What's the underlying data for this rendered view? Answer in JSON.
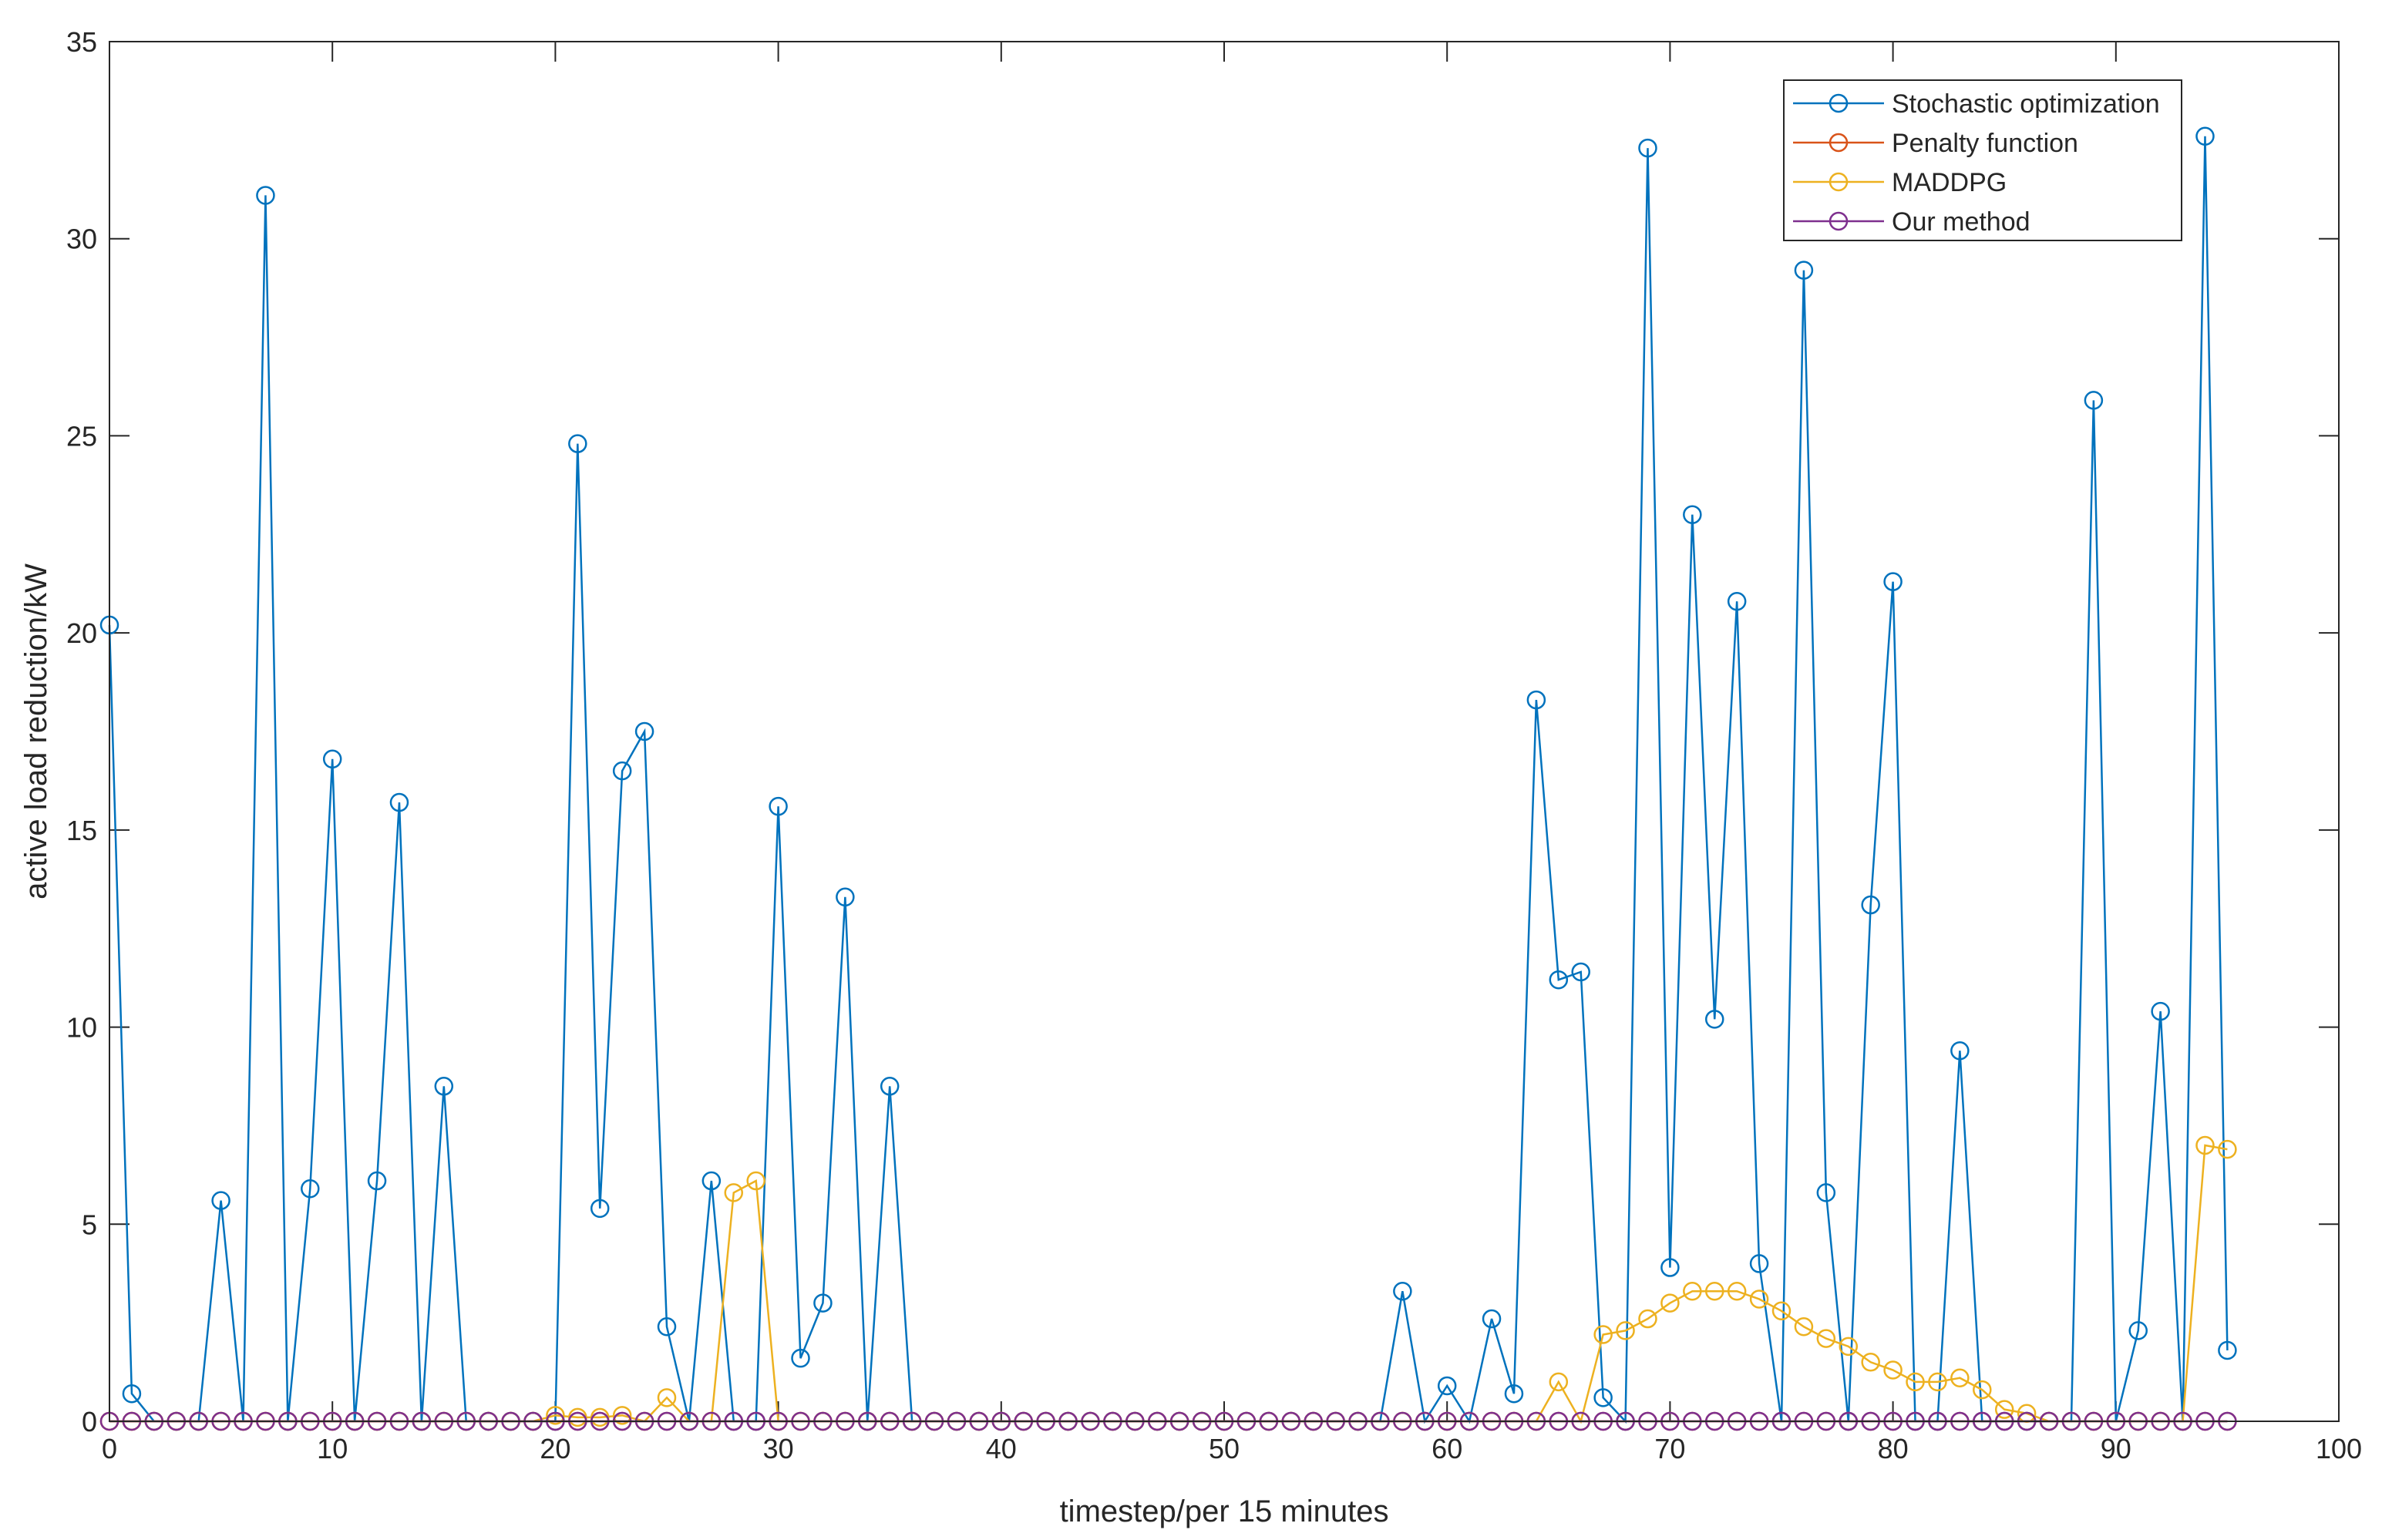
{
  "chart_data": {
    "type": "line",
    "title": "",
    "xlabel": "timestep/per 15 minutes",
    "ylabel": "active load reduction/kW",
    "xlim": [
      0,
      100
    ],
    "ylim": [
      0,
      35
    ],
    "xticks": [
      0,
      10,
      20,
      30,
      40,
      50,
      60,
      70,
      80,
      90,
      100
    ],
    "yticks": [
      0,
      5,
      10,
      15,
      20,
      25,
      30,
      35
    ],
    "legend_position": "top-right",
    "grid": false,
    "series": [
      {
        "name": "Stochastic optimization",
        "color": "#0072BD",
        "values": [
          20.2,
          0.7,
          0,
          0,
          0,
          5.6,
          0,
          31.1,
          0,
          5.9,
          16.8,
          0,
          6.1,
          15.7,
          0,
          8.5,
          0,
          0,
          0,
          0,
          0,
          24.8,
          5.4,
          16.5,
          17.5,
          2.4,
          0,
          6.1,
          0,
          0,
          15.6,
          1.6,
          3.0,
          13.3,
          0,
          8.5,
          0,
          0,
          0,
          0,
          0,
          0,
          0,
          0,
          0,
          0,
          0,
          0,
          0,
          0,
          0,
          0,
          0,
          0,
          0,
          0,
          0,
          0,
          3.3,
          0,
          0.9,
          0,
          2.6,
          0.7,
          18.3,
          11.2,
          11.4,
          0.6,
          0,
          32.3,
          3.9,
          23.0,
          10.2,
          20.8,
          4.0,
          0,
          29.2,
          5.8,
          0,
          13.1,
          21.3,
          0,
          0,
          9.4,
          0,
          0,
          0,
          0,
          0,
          25.9,
          0,
          2.3,
          10.4,
          0,
          32.6,
          1.8
        ]
      },
      {
        "name": "Penalty function",
        "color": "#D95319",
        "values": [
          0,
          0,
          0,
          0,
          0,
          0,
          0,
          0,
          0,
          0,
          0,
          0,
          0,
          0,
          0,
          0,
          0,
          0,
          0,
          0,
          0,
          0,
          0,
          0,
          0,
          0,
          0,
          0,
          0,
          0,
          0,
          0,
          0,
          0,
          0,
          0,
          0,
          0,
          0,
          0,
          0,
          0,
          0,
          0,
          0,
          0,
          0,
          0,
          0,
          0,
          0,
          0,
          0,
          0,
          0,
          0,
          0,
          0,
          0,
          0,
          0,
          0,
          0,
          0,
          0,
          0,
          0,
          0,
          0,
          0,
          0,
          0,
          0,
          0,
          0,
          0,
          0,
          0,
          0,
          0,
          0,
          0,
          0,
          0,
          0,
          0,
          0,
          0,
          0,
          0,
          0,
          0,
          0,
          0,
          0,
          0
        ]
      },
      {
        "name": "MADDPG",
        "color": "#EDB120",
        "values": [
          0,
          0,
          0,
          0,
          0,
          0,
          0,
          0,
          0,
          0,
          0,
          0,
          0,
          0,
          0,
          0,
          0,
          0,
          0,
          0,
          0.15,
          0.1,
          0.1,
          0.15,
          0,
          0.6,
          0,
          0,
          5.8,
          6.1,
          0,
          0,
          0,
          0,
          0,
          0,
          0,
          0,
          0,
          0,
          0,
          0,
          0,
          0,
          0,
          0,
          0,
          0,
          0,
          0,
          0,
          0,
          0,
          0,
          0,
          0,
          0,
          0,
          0,
          0,
          0,
          0,
          0,
          0,
          0,
          1.0,
          0,
          2.2,
          2.3,
          2.6,
          3.0,
          3.3,
          3.3,
          3.3,
          3.1,
          2.8,
          2.4,
          2.1,
          1.9,
          1.5,
          1.3,
          1.0,
          1.0,
          1.1,
          0.8,
          0.3,
          0.2,
          0,
          0,
          0,
          0,
          0,
          0,
          0,
          7.0,
          6.9
        ]
      },
      {
        "name": "Our method",
        "color": "#7E2F8E",
        "values": [
          0,
          0,
          0,
          0,
          0,
          0,
          0,
          0,
          0,
          0,
          0,
          0,
          0,
          0,
          0,
          0,
          0,
          0,
          0,
          0,
          0,
          0,
          0,
          0,
          0,
          0,
          0,
          0,
          0,
          0,
          0,
          0,
          0,
          0,
          0,
          0,
          0,
          0,
          0,
          0,
          0,
          0,
          0,
          0,
          0,
          0,
          0,
          0,
          0,
          0,
          0,
          0,
          0,
          0,
          0,
          0,
          0,
          0,
          0,
          0,
          0,
          0,
          0,
          0,
          0,
          0,
          0,
          0,
          0,
          0,
          0,
          0,
          0,
          0,
          0,
          0,
          0,
          0,
          0,
          0,
          0,
          0,
          0,
          0,
          0,
          0,
          0,
          0,
          0,
          0,
          0,
          0,
          0,
          0,
          0,
          0
        ]
      }
    ]
  }
}
